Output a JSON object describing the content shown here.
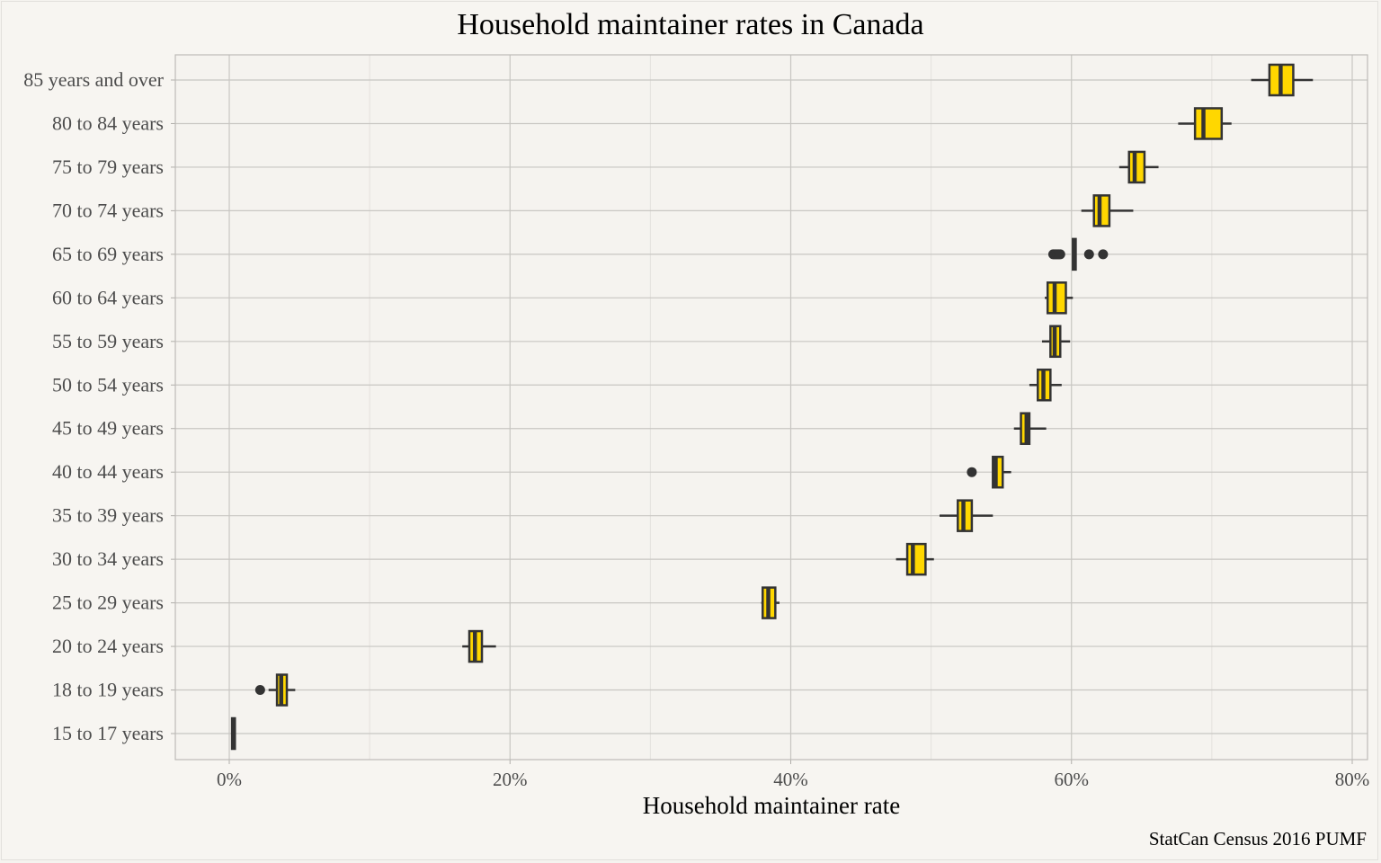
{
  "chart_data": {
    "type": "boxplot",
    "orientation": "horizontal",
    "title": "Household maintainer rates in Canada",
    "xlabel": "Household maintainer rate",
    "ylabel": "",
    "caption": "StatCan Census 2016 PUMF",
    "xlim": [
      -0.038,
      0.81
    ],
    "x_ticks": [
      0,
      0.2,
      0.4,
      0.6,
      0.8
    ],
    "x_tick_labels": [
      "0%",
      "20%",
      "40%",
      "60%",
      "80%"
    ],
    "grid": true,
    "fill_color": "#FFD700",
    "line_color": "#333333",
    "categories": [
      "15 to 17 years",
      "18 to 19 years",
      "20 to 24 years",
      "25 to 29 years",
      "30 to 34 years",
      "35 to 39 years",
      "40 to 44 years",
      "45 to 49 years",
      "50 to 54 years",
      "55 to 59 years",
      "60 to 64 years",
      "65 to 69 years",
      "70 to 74 years",
      "75 to 79 years",
      "80 to 84 years",
      "85 years and over"
    ],
    "boxes": [
      {
        "category": "15 to 17 years",
        "min": 0.002,
        "q1": 0.002,
        "median": 0.003,
        "q3": 0.004,
        "max": 0.004,
        "outliers": []
      },
      {
        "category": "18 to 19 years",
        "min": 0.028,
        "q1": 0.034,
        "median": 0.037,
        "q3": 0.041,
        "max": 0.047,
        "outliers": [
          0.022
        ]
      },
      {
        "category": "20 to 24 years",
        "min": 0.166,
        "q1": 0.171,
        "median": 0.175,
        "q3": 0.18,
        "max": 0.19,
        "outliers": []
      },
      {
        "category": "25 to 29 years",
        "min": 0.379,
        "q1": 0.38,
        "median": 0.384,
        "q3": 0.389,
        "max": 0.392,
        "outliers": []
      },
      {
        "category": "30 to 34 years",
        "min": 0.475,
        "q1": 0.483,
        "median": 0.487,
        "q3": 0.496,
        "max": 0.502,
        "outliers": []
      },
      {
        "category": "35 to 39 years",
        "min": 0.506,
        "q1": 0.519,
        "median": 0.523,
        "q3": 0.529,
        "max": 0.544,
        "outliers": []
      },
      {
        "category": "40 to 44 years",
        "min": 0.544,
        "q1": 0.544,
        "median": 0.546,
        "q3": 0.551,
        "max": 0.557,
        "outliers": [
          0.529
        ]
      },
      {
        "category": "45 to 49 years",
        "min": 0.559,
        "q1": 0.564,
        "median": 0.568,
        "q3": 0.57,
        "max": 0.582,
        "outliers": []
      },
      {
        "category": "50 to 54 years",
        "min": 0.57,
        "q1": 0.576,
        "median": 0.58,
        "q3": 0.585,
        "max": 0.593,
        "outliers": []
      },
      {
        "category": "55 to 59 years",
        "min": 0.579,
        "q1": 0.585,
        "median": 0.588,
        "q3": 0.592,
        "max": 0.599,
        "outliers": []
      },
      {
        "category": "60 to 64 years",
        "min": 0.581,
        "q1": 0.583,
        "median": 0.588,
        "q3": 0.596,
        "max": 0.601,
        "outliers": []
      },
      {
        "category": "65 to 69 years",
        "min": 0.601,
        "q1": 0.601,
        "median": 0.602,
        "q3": 0.603,
        "max": 0.603,
        "outliers": [
          0.587,
          0.588,
          0.589,
          0.59,
          0.591,
          0.592,
          0.6125,
          0.6225
        ]
      },
      {
        "category": "70 to 74 years",
        "min": 0.607,
        "q1": 0.616,
        "median": 0.62,
        "q3": 0.627,
        "max": 0.644,
        "outliers": []
      },
      {
        "category": "75 to 79 years",
        "min": 0.634,
        "q1": 0.641,
        "median": 0.645,
        "q3": 0.652,
        "max": 0.662,
        "outliers": []
      },
      {
        "category": "80 to 84 years",
        "min": 0.676,
        "q1": 0.688,
        "median": 0.694,
        "q3": 0.707,
        "max": 0.714,
        "outliers": []
      },
      {
        "category": "85 years and over",
        "min": 0.728,
        "q1": 0.741,
        "median": 0.749,
        "q3": 0.758,
        "max": 0.772,
        "outliers": []
      }
    ]
  }
}
